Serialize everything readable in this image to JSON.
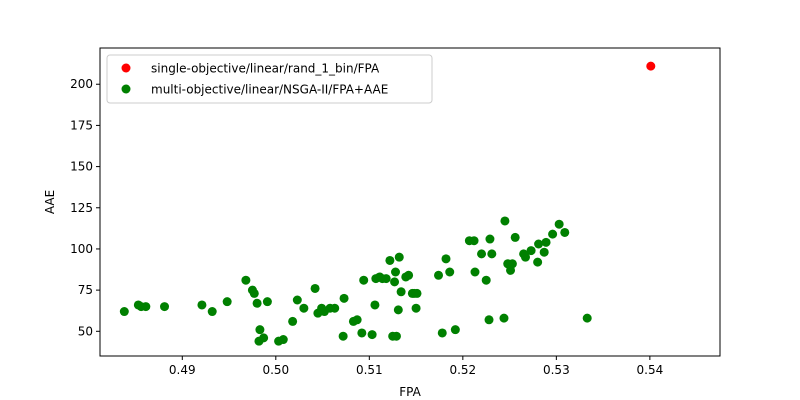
{
  "chart_data": {
    "type": "scatter",
    "xlabel": "FPA",
    "ylabel": "AAE",
    "xlim": [
      0.4812,
      0.5475
    ],
    "ylim": [
      35,
      222
    ],
    "xticks": [
      0.49,
      0.5,
      0.51,
      0.52,
      0.53,
      0.54
    ],
    "yticks": [
      50,
      75,
      100,
      125,
      150,
      175,
      200
    ],
    "grid": false,
    "legend_position": "top-left",
    "series": [
      {
        "name": "single-objective/linear/rand_1_bin/FPA",
        "color": "#ff0000",
        "points": [
          [
            0.5401,
            211
          ]
        ]
      },
      {
        "name": "multi-objective/linear/NSGA-II/FPA+AAE",
        "color": "#008000",
        "points": [
          [
            0.4838,
            62
          ],
          [
            0.4853,
            66
          ],
          [
            0.4856,
            65
          ],
          [
            0.4861,
            65
          ],
          [
            0.4881,
            65
          ],
          [
            0.4921,
            66
          ],
          [
            0.4932,
            62
          ],
          [
            0.4948,
            68
          ],
          [
            0.4968,
            81
          ],
          [
            0.4975,
            75
          ],
          [
            0.4977,
            73
          ],
          [
            0.498,
            67
          ],
          [
            0.4982,
            44
          ],
          [
            0.4983,
            51
          ],
          [
            0.4987,
            46
          ],
          [
            0.4991,
            68
          ],
          [
            0.5003,
            44
          ],
          [
            0.5008,
            45
          ],
          [
            0.5018,
            56
          ],
          [
            0.5023,
            69
          ],
          [
            0.503,
            64
          ],
          [
            0.5042,
            76
          ],
          [
            0.5045,
            61
          ],
          [
            0.5049,
            64
          ],
          [
            0.5052,
            62
          ],
          [
            0.5058,
            64
          ],
          [
            0.5063,
            64
          ],
          [
            0.5072,
            47
          ],
          [
            0.5073,
            70
          ],
          [
            0.5083,
            56
          ],
          [
            0.5087,
            57
          ],
          [
            0.5092,
            49
          ],
          [
            0.5094,
            81
          ],
          [
            0.5103,
            48
          ],
          [
            0.5106,
            66
          ],
          [
            0.5107,
            82
          ],
          [
            0.5111,
            83
          ],
          [
            0.5114,
            82
          ],
          [
            0.5118,
            82
          ],
          [
            0.5122,
            93
          ],
          [
            0.5125,
            47
          ],
          [
            0.5127,
            80
          ],
          [
            0.5128,
            86
          ],
          [
            0.5129,
            47
          ],
          [
            0.5131,
            63
          ],
          [
            0.5132,
            95
          ],
          [
            0.5134,
            74
          ],
          [
            0.5139,
            83
          ],
          [
            0.5142,
            84
          ],
          [
            0.5146,
            73
          ],
          [
            0.5148,
            73
          ],
          [
            0.515,
            64
          ],
          [
            0.5151,
            73
          ],
          [
            0.5174,
            84
          ],
          [
            0.5178,
            49
          ],
          [
            0.5182,
            94
          ],
          [
            0.5186,
            86
          ],
          [
            0.5192,
            51
          ],
          [
            0.5207,
            105
          ],
          [
            0.5212,
            105
          ],
          [
            0.5213,
            86
          ],
          [
            0.522,
            97
          ],
          [
            0.5225,
            81
          ],
          [
            0.5228,
            57
          ],
          [
            0.5229,
            106
          ],
          [
            0.5231,
            97
          ],
          [
            0.5244,
            58
          ],
          [
            0.5245,
            117
          ],
          [
            0.5248,
            91
          ],
          [
            0.5251,
            90
          ],
          [
            0.5251,
            87
          ],
          [
            0.5253,
            91
          ],
          [
            0.5256,
            107
          ],
          [
            0.5265,
            97
          ],
          [
            0.5267,
            95
          ],
          [
            0.5273,
            99
          ],
          [
            0.528,
            92
          ],
          [
            0.5281,
            103
          ],
          [
            0.5287,
            98
          ],
          [
            0.5289,
            104
          ],
          [
            0.5296,
            109
          ],
          [
            0.5303,
            115
          ],
          [
            0.5309,
            110
          ],
          [
            0.5333,
            58
          ]
        ]
      }
    ]
  }
}
